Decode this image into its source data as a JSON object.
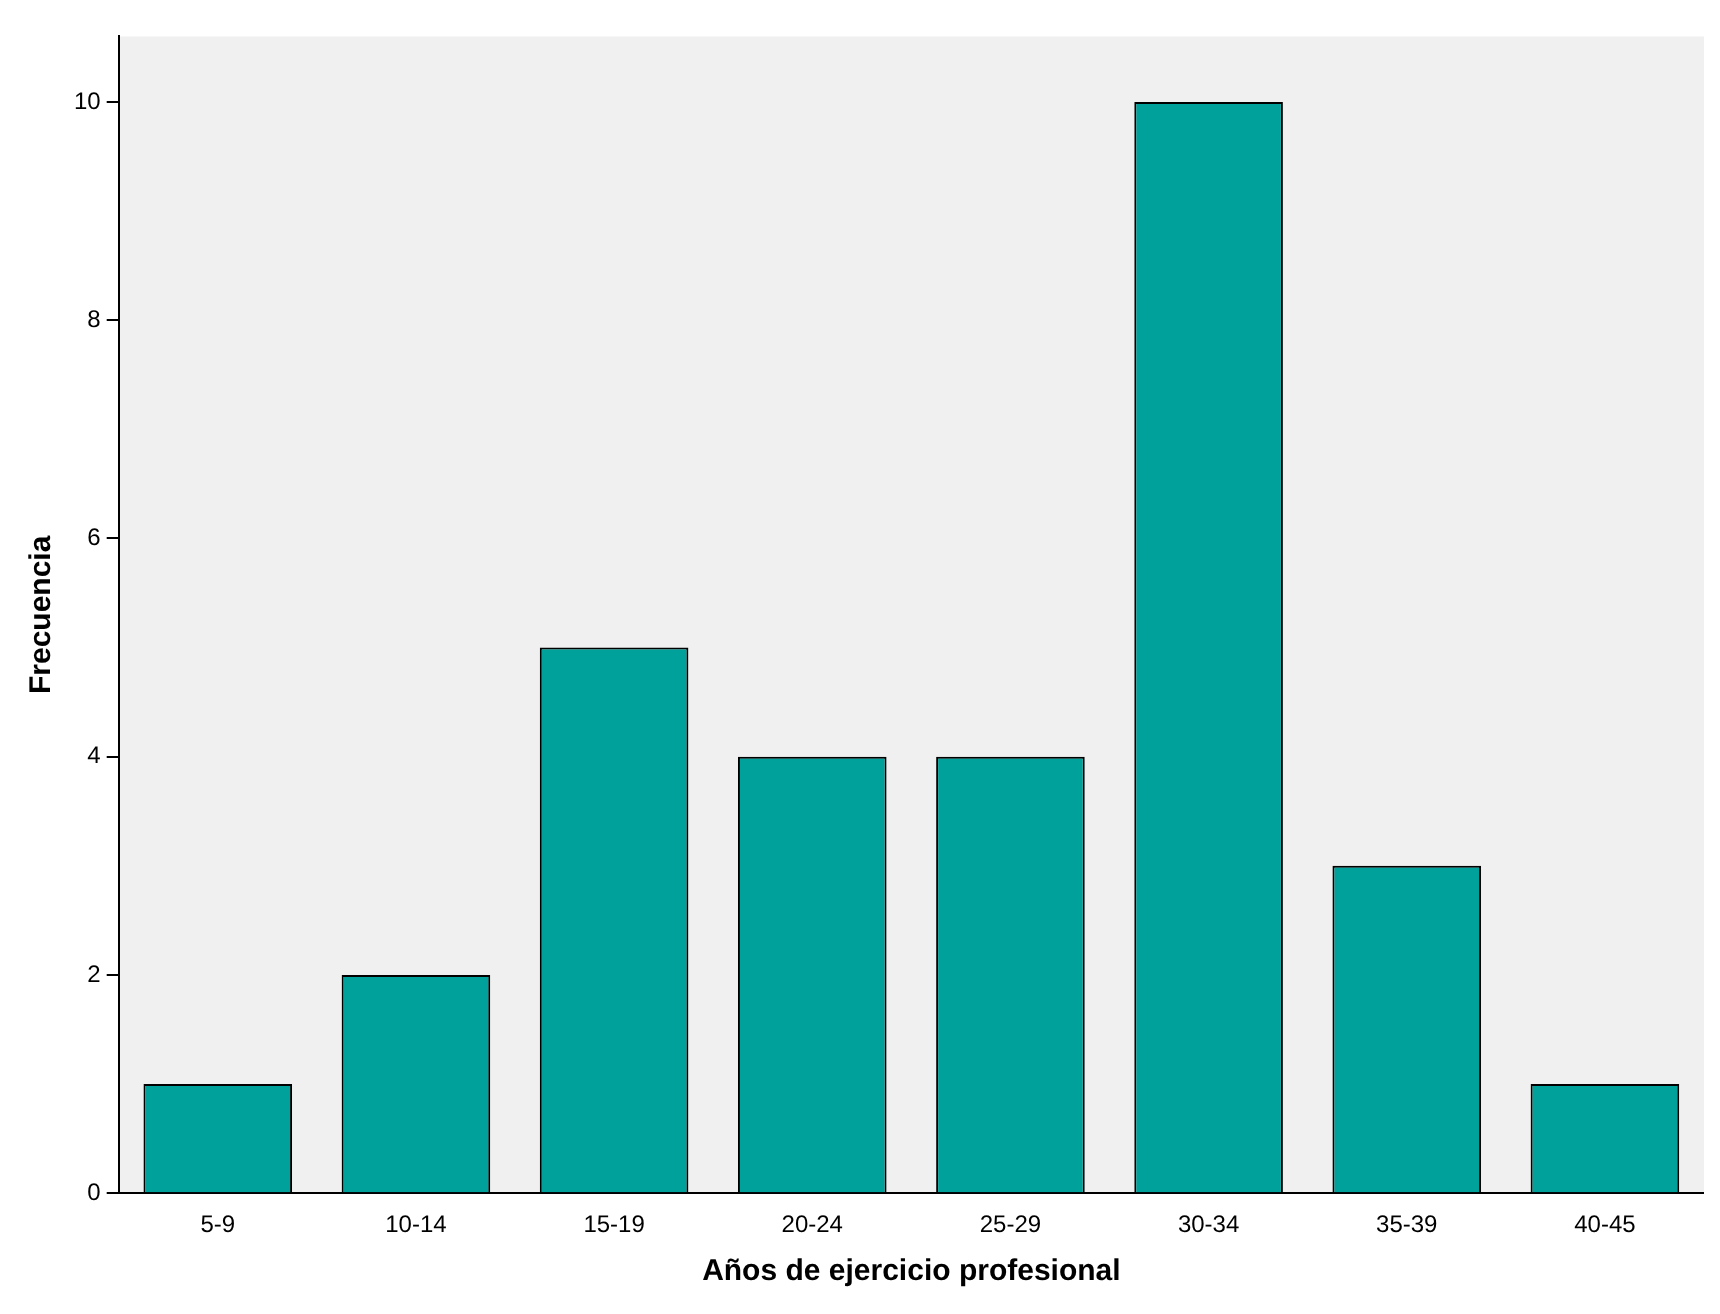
{
  "chart_data": {
    "type": "bar",
    "xlabel": "Años de ejercicio profesional",
    "ylabel": "Frecuencia",
    "categories": [
      "5-9",
      "10-14",
      "15-19",
      "20-24",
      "25-29",
      "30-34",
      "35-39",
      "40-45"
    ],
    "values": [
      1,
      2,
      5,
      4,
      4,
      10,
      3,
      1
    ],
    "color": "#00a19a",
    "ylim": [
      0,
      10.6
    ],
    "yticks": [
      0,
      2,
      4,
      6,
      8,
      10
    ],
    "grid": false,
    "legend": false
  }
}
